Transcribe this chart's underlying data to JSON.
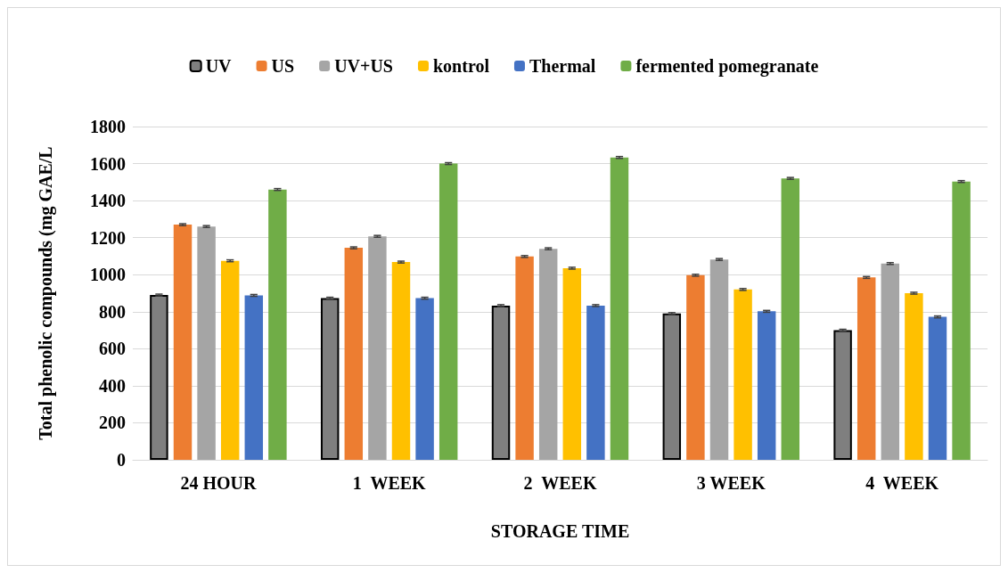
{
  "chart_data": {
    "type": "bar",
    "xlabel": "STORAGE TIME",
    "ylabel": "Total phenolic compounds (mg GAE/L",
    "categories": [
      "24 HOUR",
      "1  WEEK",
      "2  WEEK",
      "3 WEEK",
      "4  WEEK"
    ],
    "series": [
      {
        "name": "UV",
        "color": "#7f7f7f",
        "values": [
          890,
          873,
          833,
          790,
          700
        ],
        "errors": [
          5,
          5,
          5,
          5,
          5
        ]
      },
      {
        "name": "US",
        "color": "#ed7d31",
        "values": [
          1270,
          1145,
          1098,
          997,
          985
        ],
        "errors": [
          5,
          5,
          5,
          5,
          5
        ]
      },
      {
        "name": "UV+US",
        "color": "#a5a5a5",
        "values": [
          1260,
          1207,
          1140,
          1082,
          1060
        ],
        "errors": [
          5,
          5,
          5,
          5,
          5
        ]
      },
      {
        "name": "kontrol",
        "color": "#ffc000",
        "values": [
          1075,
          1068,
          1035,
          920,
          900
        ],
        "errors": [
          5,
          5,
          5,
          5,
          5
        ]
      },
      {
        "name": "Thermal",
        "color": "#4472c4",
        "values": [
          888,
          873,
          833,
          802,
          772
        ],
        "errors": [
          5,
          5,
          5,
          5,
          5
        ]
      },
      {
        "name": "fermented pomegranate",
        "color": "#70ad47",
        "values": [
          1460,
          1600,
          1633,
          1520,
          1503
        ],
        "errors": [
          5,
          5,
          5,
          5,
          5
        ]
      }
    ],
    "ylim": [
      0,
      1800
    ],
    "yticks": [
      0,
      200,
      400,
      600,
      800,
      1000,
      1200,
      1400,
      1600,
      1800
    ],
    "grid": "y",
    "legend": "top"
  }
}
